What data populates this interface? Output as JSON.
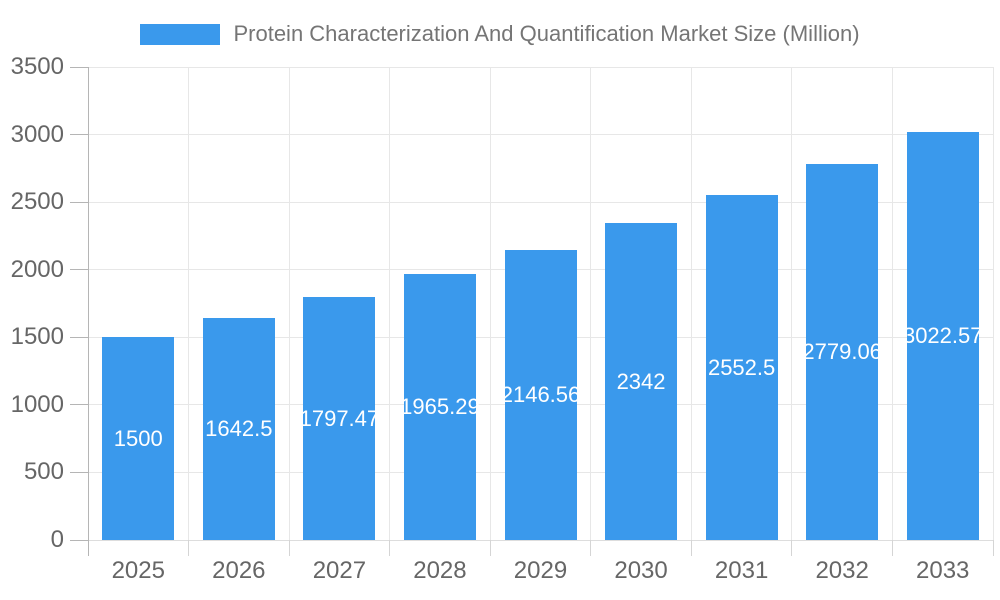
{
  "chart_data": {
    "type": "bar",
    "title": "Protein Characterization And Quantification Market Size (Million)",
    "categories": [
      "2025",
      "2026",
      "2027",
      "2028",
      "2029",
      "2030",
      "2031",
      "2032",
      "2033"
    ],
    "values": [
      1500,
      1642.5,
      1797.47,
      1965.29,
      2146.56,
      2342,
      2552.5,
      2779.06,
      3022.57
    ],
    "value_labels": [
      "1500",
      "1642.5",
      "1797.47",
      "1965.29",
      "2146.56",
      "2342",
      "2552.5",
      "2779.06",
      "3022.57"
    ],
    "ylim": [
      0,
      3500
    ],
    "ytick_step": 500,
    "ytick_labels": [
      "0",
      "500",
      "1000",
      "1500",
      "2000",
      "2500",
      "3000",
      "3500"
    ],
    "grid": true,
    "legend_position": "top",
    "colors": {
      "bar": "#3A99EC",
      "grid": "#E7E7E7",
      "grid_zero": "#DDDDDD",
      "axis": "#B5B5B5",
      "tick_x": "#D5D5D5",
      "axis_text": "#666666",
      "legend_text": "#757575",
      "bar_label": "#FFFFFF",
      "background": "#FFFFFF"
    }
  }
}
